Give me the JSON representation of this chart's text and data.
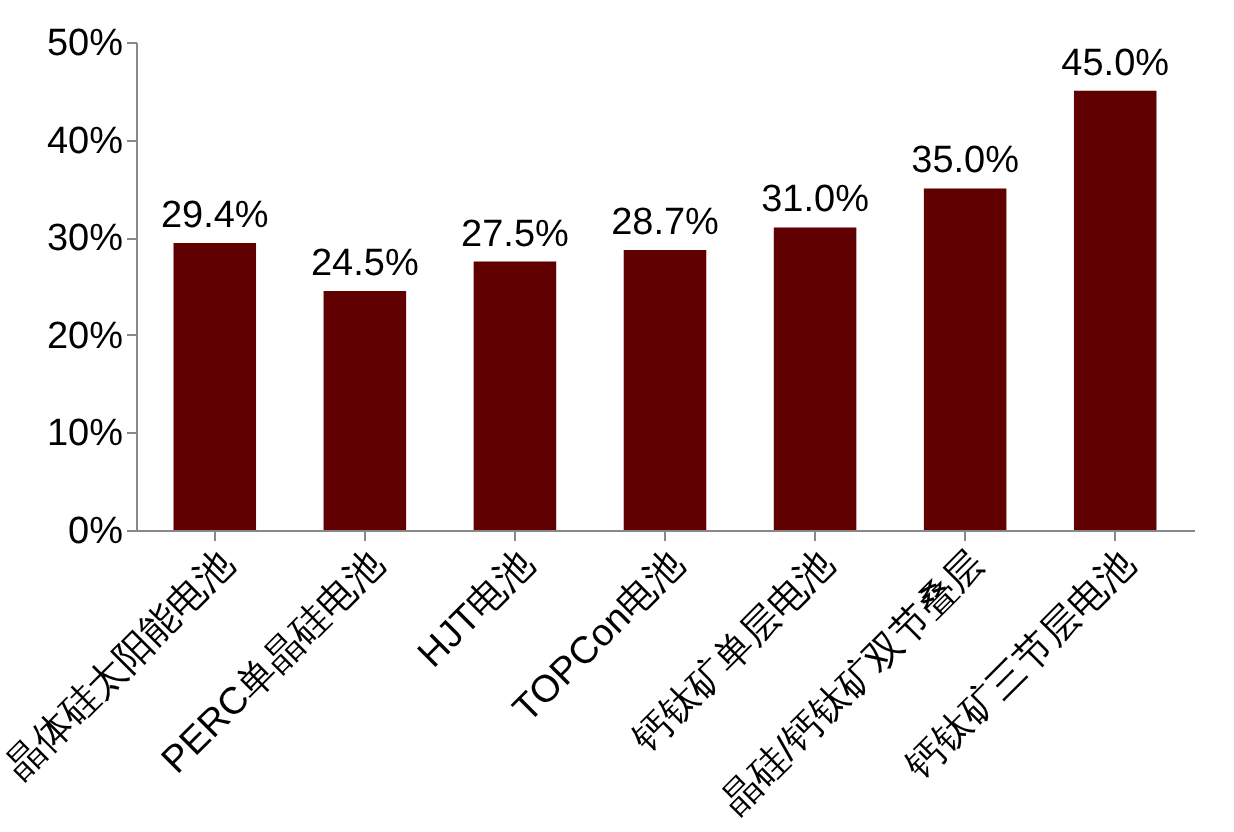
{
  "chart_data": {
    "type": "bar",
    "categories": [
      "晶体硅太阳能电池",
      "PERC单晶硅电池",
      "HJT电池",
      "TOPCon电池",
      "钙钛矿单层电池",
      "晶硅/钙钛矿双节叠层",
      "钙钛矿三节层电池"
    ],
    "values": [
      29.4,
      24.5,
      27.5,
      28.7,
      31.0,
      35.0,
      45.0
    ],
    "value_labels": [
      "29.4%",
      "24.5%",
      "27.5%",
      "28.7%",
      "31.0%",
      "35.0%",
      "45.0%"
    ],
    "color": "#600000",
    "ylim": [
      0,
      50
    ],
    "yticks": [
      {
        "value": 0,
        "label": "0%"
      },
      {
        "value": 10,
        "label": "10%"
      },
      {
        "value": 20,
        "label": "20%"
      },
      {
        "value": 30,
        "label": "30%"
      },
      {
        "value": 40,
        "label": "40%"
      },
      {
        "value": 50,
        "label": "50%"
      }
    ],
    "grid": false
  }
}
